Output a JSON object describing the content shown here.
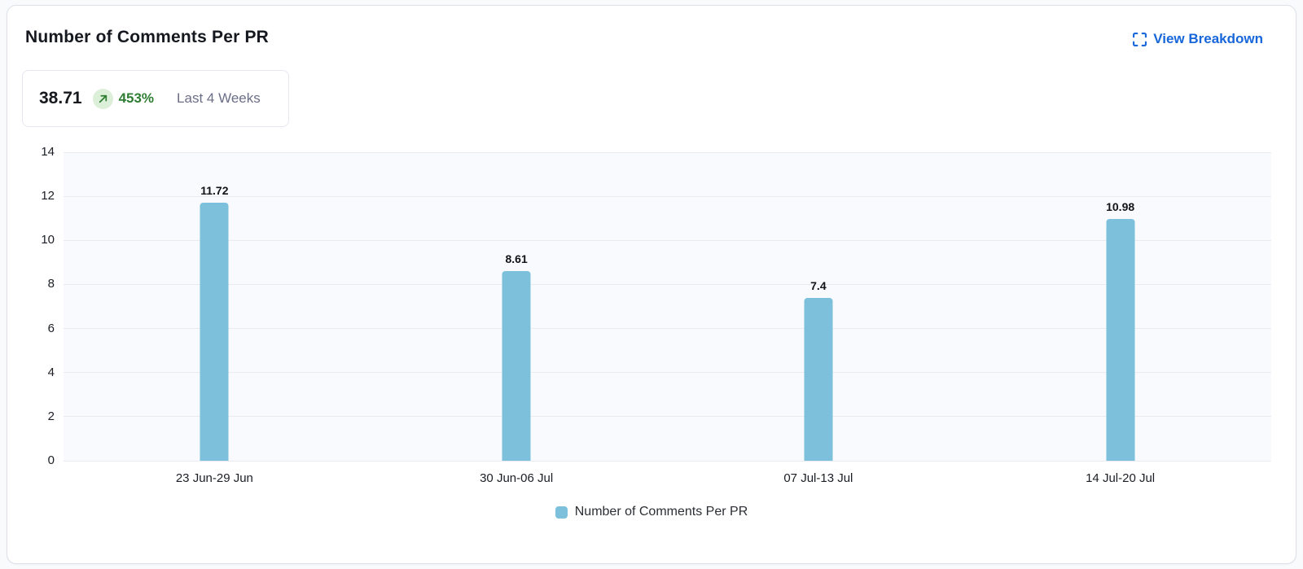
{
  "header": {
    "title": "Number of Comments Per PR",
    "view_breakdown_label": "View Breakdown"
  },
  "stat": {
    "value": "38.71",
    "change": "453%",
    "trend": "up",
    "period": "Last 4 Weeks"
  },
  "colors": {
    "bar": "#7cc0dc",
    "accent_blue": "#1766da",
    "positive_green": "#2e7d32",
    "positive_badge_bg": "#dcefd8",
    "plot_bg": "#f8fafd",
    "gridline": "#e9ebf0"
  },
  "chart_data": {
    "type": "bar",
    "title": "Number of Comments Per PR",
    "categories": [
      "23 Jun-29 Jun",
      "30 Jun-06 Jul",
      "07 Jul-13 Jul",
      "14 Jul-20 Jul"
    ],
    "values": [
      11.72,
      8.61,
      7.4,
      10.98
    ],
    "value_labels": [
      "11.72",
      "8.61",
      "7.4",
      "10.98"
    ],
    "xlabel": "",
    "ylabel": "",
    "ylim": [
      0,
      14
    ],
    "yticks": [
      0,
      2,
      4,
      6,
      8,
      10,
      12,
      14
    ],
    "grid": true,
    "bar_color": "#7cc0dc",
    "legend": {
      "position": "bottom",
      "entries": [
        "Number of Comments Per PR"
      ]
    }
  }
}
